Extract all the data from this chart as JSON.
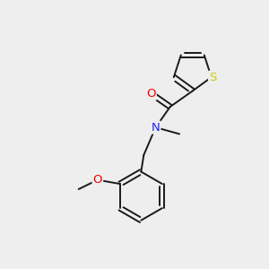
{
  "background_color": "#eeeeee",
  "bond_color": "#1a1a1a",
  "atom_colors": {
    "O": "#ee0000",
    "N": "#2222ee",
    "S": "#cccc00"
  },
  "figsize": [
    3.0,
    3.0
  ],
  "dpi": 100,
  "lw": 1.4,
  "fontsize": 9.5
}
